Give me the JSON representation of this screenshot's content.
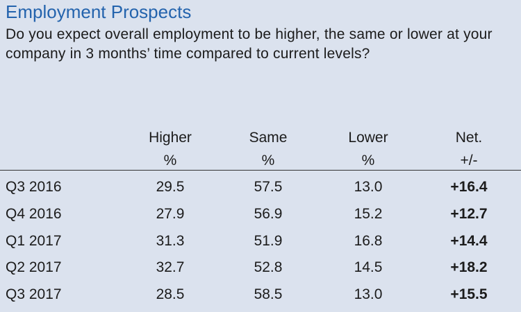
{
  "header": {
    "title": "Employment Prospects",
    "question": "Do you expect overall employment to be higher, the same or lower at your company in 3 months’ time compared to current levels?"
  },
  "table": {
    "columns": [
      {
        "label": "Higher",
        "unit": "%"
      },
      {
        "label": "Same",
        "unit": "%"
      },
      {
        "label": "Lower",
        "unit": "%"
      },
      {
        "label": "Net.",
        "unit": "+/-"
      }
    ],
    "rows": [
      [
        "Q3 2016",
        "29.5",
        "57.5",
        "13.0",
        "+16.4"
      ],
      [
        "Q4 2016",
        "27.9",
        "56.9",
        "15.2",
        "+12.7"
      ],
      [
        "Q1 2017",
        "31.3",
        "51.9",
        "16.8",
        "+14.4"
      ],
      [
        "Q2 2017",
        "32.7",
        "52.8",
        "14.5",
        "+18.2"
      ],
      [
        "Q3 2017",
        "28.5",
        "58.5",
        "13.0",
        "+15.5"
      ]
    ]
  }
}
